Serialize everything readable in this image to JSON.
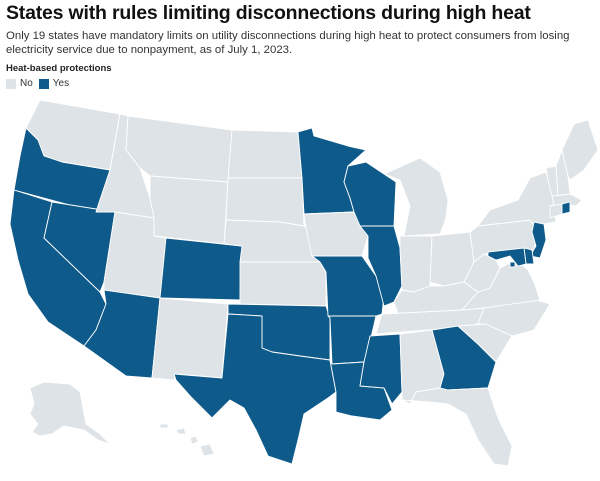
{
  "title": "States with rules limiting disconnections during high heat",
  "subtitle": "Only 19 states have mandatory limits on utility disconnections during high heat to protect consumers from losing electricity service due to nonpayment, as of July 1, 2023.",
  "legend": {
    "title": "Heat-based protections",
    "items": [
      {
        "label": "No",
        "color": "#dde3e6"
      },
      {
        "label": "Yes",
        "color": "#0e5a8a"
      }
    ]
  },
  "colors": {
    "no": "#dde3e6",
    "yes": "#0e5a8a",
    "border": "#ffffff"
  },
  "states": [
    {
      "id": "WA",
      "protection": "No"
    },
    {
      "id": "OR",
      "protection": "Yes"
    },
    {
      "id": "CA",
      "protection": "Yes"
    },
    {
      "id": "NV",
      "protection": "Yes"
    },
    {
      "id": "ID",
      "protection": "No"
    },
    {
      "id": "MT",
      "protection": "No"
    },
    {
      "id": "WY",
      "protection": "No"
    },
    {
      "id": "UT",
      "protection": "No"
    },
    {
      "id": "AZ",
      "protection": "Yes"
    },
    {
      "id": "CO",
      "protection": "Yes"
    },
    {
      "id": "NM",
      "protection": "No"
    },
    {
      "id": "ND",
      "protection": "No"
    },
    {
      "id": "SD",
      "protection": "No"
    },
    {
      "id": "NE",
      "protection": "No"
    },
    {
      "id": "KS",
      "protection": "No"
    },
    {
      "id": "OK",
      "protection": "Yes"
    },
    {
      "id": "TX",
      "protection": "Yes"
    },
    {
      "id": "MN",
      "protection": "Yes"
    },
    {
      "id": "IA",
      "protection": "No"
    },
    {
      "id": "MO",
      "protection": "Yes"
    },
    {
      "id": "AR",
      "protection": "Yes"
    },
    {
      "id": "LA",
      "protection": "Yes"
    },
    {
      "id": "WI",
      "protection": "Yes"
    },
    {
      "id": "IL",
      "protection": "Yes"
    },
    {
      "id": "MI",
      "protection": "No"
    },
    {
      "id": "IN",
      "protection": "No"
    },
    {
      "id": "OH",
      "protection": "No"
    },
    {
      "id": "KY",
      "protection": "No"
    },
    {
      "id": "TN",
      "protection": "No"
    },
    {
      "id": "MS",
      "protection": "Yes"
    },
    {
      "id": "AL",
      "protection": "No"
    },
    {
      "id": "GA",
      "protection": "Yes"
    },
    {
      "id": "FL",
      "protection": "No"
    },
    {
      "id": "SC",
      "protection": "No"
    },
    {
      "id": "NC",
      "protection": "No"
    },
    {
      "id": "VA",
      "protection": "No"
    },
    {
      "id": "WV",
      "protection": "No"
    },
    {
      "id": "PA",
      "protection": "No"
    },
    {
      "id": "NY",
      "protection": "No"
    },
    {
      "id": "VT",
      "protection": "No"
    },
    {
      "id": "NH",
      "protection": "No"
    },
    {
      "id": "ME",
      "protection": "No"
    },
    {
      "id": "MA",
      "protection": "No"
    },
    {
      "id": "RI",
      "protection": "Yes"
    },
    {
      "id": "CT",
      "protection": "No"
    },
    {
      "id": "NJ",
      "protection": "Yes"
    },
    {
      "id": "DE",
      "protection": "Yes"
    },
    {
      "id": "MD",
      "protection": "Yes"
    },
    {
      "id": "DC",
      "protection": "Yes"
    },
    {
      "id": "AK",
      "protection": "No"
    },
    {
      "id": "HI",
      "protection": "No"
    }
  ]
}
